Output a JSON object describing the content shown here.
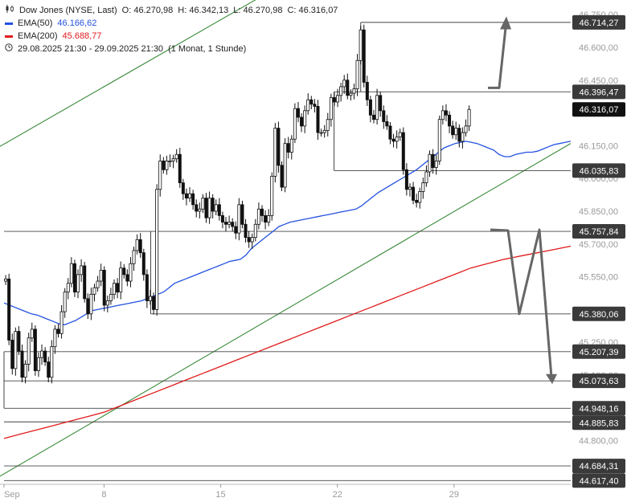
{
  "legend": {
    "symbol_icon": "candlestick-icon",
    "title": "Dow Jones (NYSE, Last)",
    "open": "O: 46.270,98",
    "high": "H: 46.342,13",
    "low": "L: 46.270,98",
    "close": "C: 46.316,07",
    "ema50_label": "EMA(50)",
    "ema50_value": "46.166,62",
    "ema200_label": "EMA(200)",
    "ema200_value": "45.688,77",
    "range_icon": "clock-icon",
    "range": "29.08.2025 21:30 - 29.09.2025 21:30",
    "range_note": "(1 Monat, 1 Stunde)"
  },
  "colors": {
    "ema50": "#2351e0",
    "ema200": "#e01b1b",
    "trend": "#3a8a3a",
    "candle": "#111111",
    "level": "#444444",
    "arrow": "#666666",
    "label_bg": "#3a3a3a",
    "current_bg": "#111111"
  },
  "chart_data": {
    "type": "candlestick",
    "title": "Dow Jones (NYSE, Last)",
    "interval": "1 Stunde",
    "y_range": [
      44600,
      46780
    ],
    "y_ticks": [
      "46.750,00",
      "46.600,00",
      "46.450,00",
      "46.150,00",
      "46.000,00",
      "45.850,00",
      "45.700,00",
      "45.550,00",
      "45.400,00",
      "45.250,00",
      "45.100,00",
      "44.800,00"
    ],
    "y_tick_values": [
      46750,
      46600,
      46450,
      46150,
      46000,
      45850,
      45700,
      45550,
      45400,
      45250,
      45100,
      44800
    ],
    "x_ticks": [
      "Sep",
      "8",
      "15",
      "22",
      "29"
    ],
    "x_tick_index": [
      0,
      30,
      65,
      100,
      135
    ],
    "index_range": [
      0,
      170
    ],
    "price_levels": [
      "46.714,27",
      "46.396,47",
      "46.035,83",
      "45.757,84",
      "45.380,06",
      "45.207,39",
      "45.073,63",
      "44.948,16",
      "44.885,83",
      "44.684,31",
      "44.617,40"
    ],
    "price_level_values": [
      46714.27,
      46396.47,
      46035.83,
      45757.84,
      45380.06,
      45207.39,
      45073.63,
      44948.16,
      44885.83,
      44684.31,
      44617.4
    ],
    "level_start_index": [
      107,
      99,
      99,
      0,
      44,
      0,
      0,
      0,
      0,
      0,
      0
    ],
    "current_price": "46.316,07",
    "current_price_value": 46316.07,
    "closes": [
      45540,
      45260,
      45130,
      45300,
      45210,
      45090,
      45150,
      45270,
      45310,
      45120,
      45180,
      45210,
      45160,
      45090,
      45230,
      45310,
      45290,
      45390,
      45480,
      45520,
      45610,
      45480,
      45560,
      45600,
      45450,
      45380,
      45470,
      45500,
      45530,
      45580,
      45420,
      45440,
      45470,
      45520,
      45480,
      45590,
      45560,
      45530,
      45610,
      45670,
      45720,
      45660,
      45560,
      45440,
      45460,
      45400,
      45950,
      46080,
      46040,
      46080,
      46080,
      46090,
      46110,
      45980,
      45930,
      45910,
      45930,
      45880,
      45850,
      45860,
      45910,
      45820,
      45910,
      45850,
      45880,
      45830,
      45800,
      45790,
      45800,
      45780,
      45750,
      45880,
      45790,
      45730,
      45710,
      45730,
      45790,
      45860,
      45830,
      45800,
      45830,
      46010,
      46230,
      46060,
      45960,
      46160,
      46120,
      46180,
      46320,
      46280,
      46240,
      46310,
      46360,
      46340,
      46330,
      46210,
      46210,
      46220,
      46270,
      46370,
      46350,
      46380,
      46420,
      46450,
      46380,
      46390,
      46410,
      46540,
      46680,
      46440,
      46360,
      46290,
      46270,
      46380,
      46310,
      46260,
      46240,
      46180,
      46170,
      46190,
      46210,
      46040,
      45950,
      45960,
      45900,
      45890,
      45940,
      45980,
      46030,
      46110,
      46050,
      46080,
      46270,
      46310,
      46290,
      46240,
      46200,
      46230,
      46170,
      46210,
      46240,
      46316
    ],
    "ema50": [
      45430,
      45420,
      45410,
      45400,
      45390,
      45380,
      45375,
      45365,
      45355,
      45345,
      45335,
      45330,
      45340,
      45350,
      45365,
      45380,
      45395,
      45400,
      45405,
      45410,
      45415,
      45420,
      45425,
      45430,
      45435,
      45440,
      45450,
      45460,
      45470,
      45480,
      45500,
      45520,
      45530,
      45540,
      45550,
      45560,
      45570,
      45580,
      45590,
      45600,
      45610,
      45620,
      45625,
      45630,
      45650,
      45680,
      45700,
      45720,
      45740,
      45760,
      45780,
      45790,
      45800,
      45805,
      45810,
      45815,
      45820,
      45825,
      45830,
      45835,
      45840,
      45845,
      45850,
      45855,
      45860,
      45875,
      45895,
      45915,
      45935,
      45950,
      45965,
      45980,
      45995,
      46010,
      46025,
      46040,
      46060,
      46080,
      46100,
      46120,
      46140,
      46150,
      46160,
      46165,
      46170,
      46165,
      46160,
      46150,
      46140,
      46130,
      46110,
      46100,
      46100,
      46110,
      46115,
      46120,
      46120,
      46125,
      46135,
      46145,
      46155,
      46160,
      46165,
      46170
    ],
    "ema200": [
      44810,
      44830,
      44850,
      44870,
      44890,
      44910,
      44930,
      44960,
      44990,
      45020,
      45050,
      45080,
      45110,
      45140,
      45170,
      45200,
      45230,
      45260,
      45290,
      45320,
      45350,
      45380,
      45410,
      45440,
      45470,
      45500,
      45530,
      45560,
      45590,
      45610,
      45630,
      45645,
      45660,
      45675,
      45690
    ],
    "ema200_start_index": 0,
    "ema50_start_index": 0,
    "ema200_step": 5,
    "ema50_step": 1.65,
    "annotations": {
      "arrow_up": "projection up towards 46.714,27",
      "arrow_down": "projection down towards 45.073,63"
    }
  }
}
